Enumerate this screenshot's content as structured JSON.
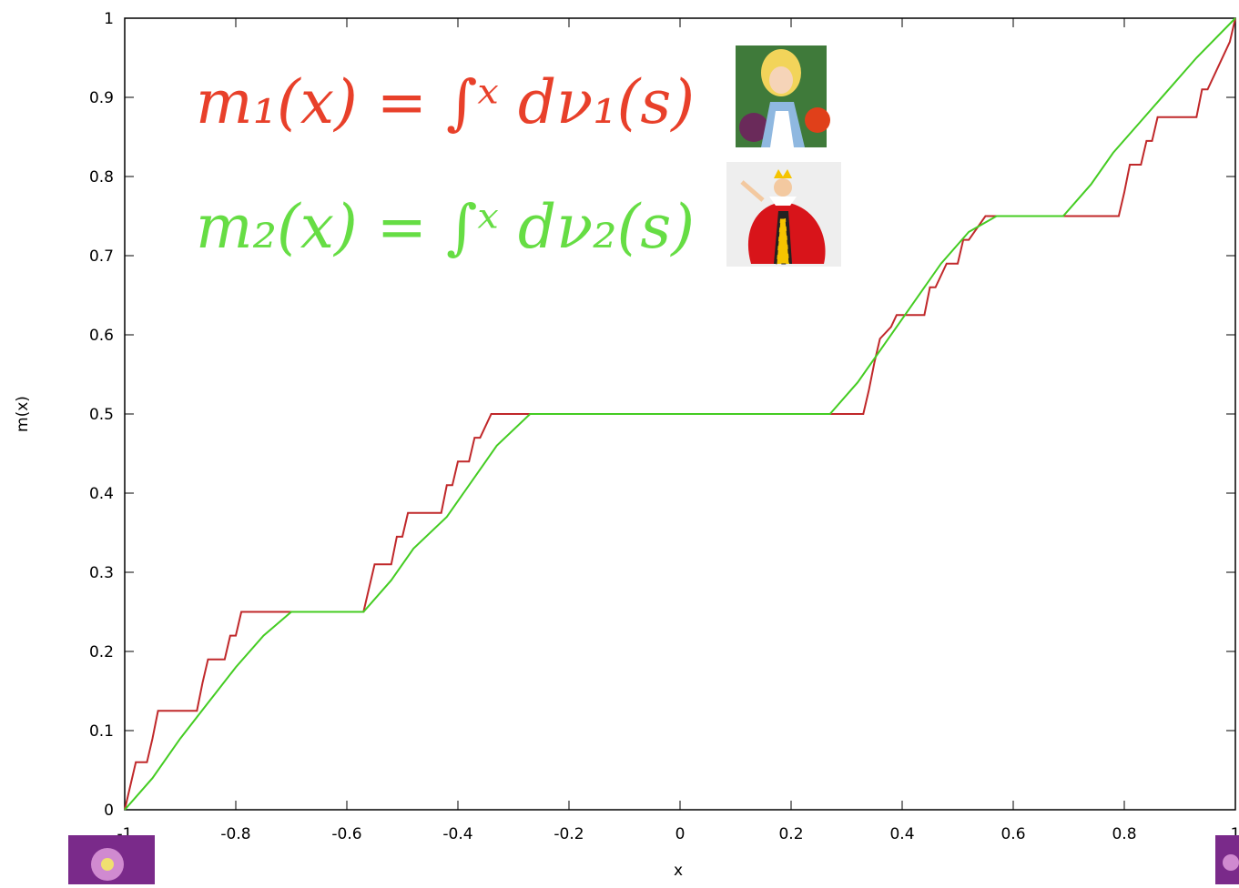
{
  "chart_data": {
    "type": "line",
    "x_label": "x",
    "y_label": "m(x)",
    "xlim": [
      -1,
      1
    ],
    "ylim": [
      0,
      1
    ],
    "xticks": [
      -1,
      -0.8,
      -0.6,
      -0.4,
      -0.2,
      0,
      0.2,
      0.4,
      0.6,
      0.8,
      1
    ],
    "yticks": [
      0,
      0.1,
      0.2,
      0.3,
      0.4,
      0.5,
      0.6,
      0.7,
      0.8,
      0.9,
      1
    ],
    "grid": false,
    "series": [
      {
        "name": "m₁(x) = ∫ˣ dν₁(s)",
        "color": "#c0282a",
        "label_color": "#e8402a",
        "x": [
          -1,
          -0.99,
          -0.98,
          -0.96,
          -0.95,
          -0.94,
          -0.87,
          -0.86,
          -0.85,
          -0.84,
          -0.82,
          -0.81,
          -0.8,
          -0.79,
          -0.57,
          -0.56,
          -0.55,
          -0.54,
          -0.52,
          -0.51,
          -0.5,
          -0.49,
          -0.43,
          -0.42,
          -0.41,
          -0.4,
          -0.38,
          -0.37,
          -0.36,
          -0.34,
          0.33,
          0.34,
          0.35,
          0.36,
          0.38,
          0.39,
          0.44,
          0.45,
          0.46,
          0.48,
          0.5,
          0.51,
          0.52,
          0.55,
          0.79,
          0.8,
          0.81,
          0.83,
          0.84,
          0.85,
          0.86,
          0.93,
          0.94,
          0.95,
          0.97,
          0.99,
          1
        ],
        "y": [
          0,
          0.03,
          0.06,
          0.06,
          0.09,
          0.125,
          0.125,
          0.16,
          0.19,
          0.19,
          0.19,
          0.22,
          0.22,
          0.25,
          0.25,
          0.28,
          0.31,
          0.31,
          0.31,
          0.345,
          0.345,
          0.375,
          0.375,
          0.41,
          0.41,
          0.44,
          0.44,
          0.47,
          0.47,
          0.5,
          0.5,
          0.53,
          0.565,
          0.595,
          0.61,
          0.625,
          0.625,
          0.66,
          0.66,
          0.69,
          0.69,
          0.72,
          0.72,
          0.75,
          0.75,
          0.78,
          0.815,
          0.815,
          0.845,
          0.845,
          0.875,
          0.875,
          0.91,
          0.91,
          0.94,
          0.97,
          1
        ]
      },
      {
        "name": "m₂(x) = ∫ˣ dν₂(s)",
        "color": "#44cc22",
        "label_color": "#66dd44",
        "x": [
          -1,
          -0.95,
          -0.9,
          -0.85,
          -0.8,
          -0.75,
          -0.7,
          -0.57,
          -0.52,
          -0.48,
          -0.42,
          -0.38,
          -0.33,
          -0.27,
          0.27,
          0.32,
          0.37,
          0.42,
          0.47,
          0.52,
          0.57,
          0.69,
          0.74,
          0.78,
          0.83,
          0.88,
          0.93,
          1
        ],
        "y": [
          0,
          0.04,
          0.09,
          0.135,
          0.18,
          0.22,
          0.25,
          0.25,
          0.29,
          0.33,
          0.37,
          0.41,
          0.46,
          0.5,
          0.5,
          0.54,
          0.59,
          0.64,
          0.69,
          0.73,
          0.75,
          0.75,
          0.79,
          0.83,
          0.87,
          0.91,
          0.95,
          1
        ]
      }
    ]
  }
}
